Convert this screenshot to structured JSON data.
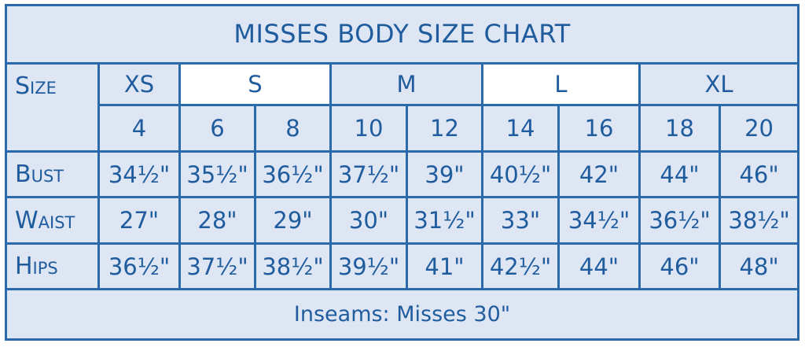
{
  "title": "MISSES BODY SIZE CHART",
  "size_label": "Size",
  "size_groups": [
    {
      "label": "XS",
      "span": 1,
      "tone": "blue"
    },
    {
      "label": "S",
      "span": 2,
      "tone": "white"
    },
    {
      "label": "M",
      "span": 2,
      "tone": "blue"
    },
    {
      "label": "L",
      "span": 2,
      "tone": "white"
    },
    {
      "label": "XL",
      "span": 2,
      "tone": "blue"
    }
  ],
  "size_numbers": [
    "4",
    "6",
    "8",
    "10",
    "12",
    "14",
    "16",
    "18",
    "20"
  ],
  "rows": [
    {
      "label": "Bust",
      "values": [
        "34½\"",
        "35½\"",
        "36½\"",
        "37½\"",
        "39\"",
        "40½\"",
        "42\"",
        "44\"",
        "46\""
      ]
    },
    {
      "label": "Waist",
      "values": [
        "27\"",
        "28\"",
        "29\"",
        "30\"",
        "31½\"",
        "33\"",
        "34½\"",
        "36½\"",
        "38½\""
      ]
    },
    {
      "label": "Hips",
      "values": [
        "36½\"",
        "37½\"",
        "38½\"",
        "39½\"",
        "41\"",
        "42½\"",
        "44\"",
        "46\"",
        "48\""
      ]
    }
  ],
  "footer": "Inseams:  Misses 30\""
}
